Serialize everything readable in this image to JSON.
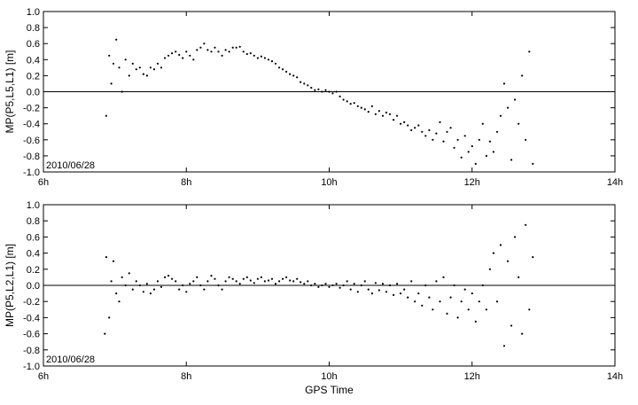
{
  "chart_data": [
    {
      "type": "scatter",
      "ylabel": "MP(P5,L5,L1) [m]",
      "xlabel": "",
      "annotation": "2010/06/28",
      "xlim": [
        6,
        14
      ],
      "ylim": [
        -1.0,
        1.0
      ],
      "xticks": [
        6,
        8,
        10,
        12,
        14
      ],
      "xtick_labels": [
        "6h",
        "8h",
        "10h",
        "12h",
        "14h"
      ],
      "yticks": [
        -1.0,
        -0.8,
        -0.6,
        -0.4,
        -0.2,
        0.0,
        0.2,
        0.4,
        0.6,
        0.8,
        1.0
      ],
      "ytick_labels": [
        "-1.0",
        "-0.8",
        "-0.6",
        "-0.4",
        "-0.2",
        "0.0",
        "0.2",
        "0.4",
        "0.6",
        "0.8",
        "1.0"
      ],
      "zero_line": true,
      "grid": false,
      "series": [
        {
          "x": [
            6.88,
            6.92,
            6.95,
            6.98,
            7.02,
            7.06,
            7.1,
            7.15,
            7.2,
            7.25,
            7.3,
            7.35,
            7.4,
            7.45,
            7.5,
            7.55,
            7.6,
            7.65,
            7.7,
            7.75,
            7.8,
            7.85,
            7.9,
            7.95,
            8.0,
            8.05,
            8.1,
            8.15,
            8.2,
            8.25,
            8.3,
            8.35,
            8.4,
            8.45,
            8.5,
            8.55,
            8.6,
            8.65,
            8.7,
            8.75,
            8.8,
            8.85,
            8.9,
            8.95,
            9.0,
            9.05,
            9.1,
            9.15,
            9.2,
            9.25,
            9.3,
            9.35,
            9.4,
            9.45,
            9.5,
            9.55,
            9.6,
            9.65,
            9.7,
            9.75,
            9.8,
            9.85,
            9.9,
            9.95,
            10.0,
            10.05,
            10.1,
            10.15,
            10.2,
            10.25,
            10.3,
            10.35,
            10.4,
            10.45,
            10.5,
            10.55,
            10.6,
            10.65,
            10.7,
            10.75,
            10.8,
            10.85,
            10.9,
            10.95,
            11.0,
            11.05,
            11.1,
            11.15,
            11.2,
            11.25,
            11.3,
            11.35,
            11.4,
            11.45,
            11.5,
            11.55,
            11.6,
            11.65,
            11.7,
            11.75,
            11.8,
            11.85,
            11.9,
            11.95,
            12.0,
            12.05,
            12.1,
            12.15,
            12.2,
            12.25,
            12.3,
            12.35,
            12.4,
            12.45,
            12.5,
            12.55,
            12.6,
            12.65,
            12.7,
            12.75,
            12.8,
            12.85
          ],
          "y": [
            -0.3,
            0.45,
            0.1,
            0.35,
            0.65,
            0.3,
            0.0,
            0.4,
            0.2,
            0.35,
            0.28,
            0.3,
            0.22,
            0.2,
            0.3,
            0.28,
            0.35,
            0.3,
            0.42,
            0.45,
            0.48,
            0.5,
            0.46,
            0.42,
            0.5,
            0.45,
            0.4,
            0.52,
            0.55,
            0.6,
            0.52,
            0.5,
            0.55,
            0.5,
            0.45,
            0.52,
            0.5,
            0.55,
            0.55,
            0.56,
            0.5,
            0.47,
            0.48,
            0.45,
            0.42,
            0.44,
            0.42,
            0.4,
            0.38,
            0.35,
            0.3,
            0.28,
            0.25,
            0.22,
            0.2,
            0.18,
            0.12,
            0.1,
            0.08,
            0.05,
            0.02,
            0.03,
            0.0,
            0.02,
            0.0,
            -0.02,
            0.0,
            -0.06,
            -0.1,
            -0.12,
            -0.15,
            -0.14,
            -0.18,
            -0.2,
            -0.22,
            -0.25,
            -0.18,
            -0.28,
            -0.24,
            -0.3,
            -0.26,
            -0.28,
            -0.35,
            -0.3,
            -0.4,
            -0.38,
            -0.42,
            -0.48,
            -0.45,
            -0.42,
            -0.5,
            -0.55,
            -0.48,
            -0.6,
            -0.52,
            -0.38,
            -0.62,
            -0.5,
            -0.45,
            -0.7,
            -0.6,
            -0.82,
            -0.55,
            -0.75,
            -0.68,
            -0.9,
            -0.6,
            -0.4,
            -0.8,
            -0.62,
            -0.75,
            -0.5,
            -0.3,
            0.1,
            -0.2,
            -0.85,
            -0.1,
            -0.4,
            0.2,
            -0.6,
            0.5,
            -0.9
          ],
          "marker": "dot",
          "color": "#000000"
        }
      ]
    },
    {
      "type": "scatter",
      "ylabel": "MP(P5,L2,L1) [m]",
      "xlabel": "GPS Time",
      "annotation": "2010/06/28",
      "xlim": [
        6,
        14
      ],
      "ylim": [
        -1.0,
        1.0
      ],
      "xticks": [
        6,
        8,
        10,
        12,
        14
      ],
      "xtick_labels": [
        "6h",
        "8h",
        "10h",
        "12h",
        "14h"
      ],
      "yticks": [
        -1.0,
        -0.8,
        -0.6,
        -0.4,
        -0.2,
        0.0,
        0.2,
        0.4,
        0.6,
        0.8,
        1.0
      ],
      "ytick_labels": [
        "-1.0",
        "-0.8",
        "-0.6",
        "-0.4",
        "-0.2",
        "0.0",
        "0.2",
        "0.4",
        "0.6",
        "0.8",
        "1.0"
      ],
      "zero_line": true,
      "grid": false,
      "series": [
        {
          "x": [
            6.86,
            6.88,
            6.92,
            6.95,
            6.98,
            7.02,
            7.06,
            7.1,
            7.15,
            7.2,
            7.25,
            7.3,
            7.35,
            7.4,
            7.45,
            7.5,
            7.55,
            7.6,
            7.65,
            7.7,
            7.75,
            7.8,
            7.85,
            7.9,
            7.95,
            8.0,
            8.05,
            8.1,
            8.15,
            8.2,
            8.25,
            8.3,
            8.35,
            8.4,
            8.45,
            8.5,
            8.55,
            8.6,
            8.65,
            8.7,
            8.75,
            8.8,
            8.85,
            8.9,
            8.95,
            9.0,
            9.05,
            9.1,
            9.15,
            9.2,
            9.25,
            9.3,
            9.35,
            9.4,
            9.45,
            9.5,
            9.55,
            9.6,
            9.65,
            9.7,
            9.75,
            9.8,
            9.85,
            9.9,
            9.95,
            10.0,
            10.05,
            10.1,
            10.15,
            10.2,
            10.25,
            10.3,
            10.35,
            10.4,
            10.45,
            10.5,
            10.55,
            10.6,
            10.65,
            10.7,
            10.75,
            10.8,
            10.85,
            10.9,
            10.95,
            11.0,
            11.05,
            11.1,
            11.15,
            11.2,
            11.25,
            11.3,
            11.35,
            11.4,
            11.45,
            11.5,
            11.55,
            11.6,
            11.65,
            11.7,
            11.75,
            11.8,
            11.85,
            11.9,
            11.95,
            12.0,
            12.05,
            12.1,
            12.15,
            12.2,
            12.25,
            12.3,
            12.35,
            12.4,
            12.45,
            12.5,
            12.55,
            12.6,
            12.65,
            12.7,
            12.75,
            12.8,
            12.85
          ],
          "y": [
            -0.6,
            0.35,
            -0.4,
            0.05,
            0.3,
            -0.1,
            -0.2,
            0.1,
            0.0,
            0.15,
            -0.05,
            0.05,
            0.0,
            -0.08,
            0.02,
            -0.1,
            -0.05,
            0.05,
            -0.02,
            0.1,
            0.12,
            0.08,
            0.05,
            -0.05,
            0.0,
            -0.08,
            0.02,
            0.05,
            0.1,
            0.0,
            -0.05,
            0.05,
            0.12,
            0.08,
            0.0,
            -0.05,
            0.05,
            0.1,
            0.08,
            0.05,
            0.02,
            0.08,
            0.1,
            0.06,
            0.03,
            0.08,
            0.1,
            0.05,
            0.06,
            0.08,
            0.02,
            0.05,
            0.08,
            0.1,
            0.06,
            0.05,
            0.08,
            0.04,
            0.02,
            0.05,
            0.0,
            0.02,
            -0.02,
            0.0,
            0.02,
            -0.02,
            0.0,
            0.02,
            -0.03,
            0.0,
            0.05,
            -0.05,
            0.02,
            -0.08,
            0.0,
            0.05,
            -0.05,
            -0.1,
            0.03,
            -0.06,
            0.02,
            -0.08,
            0.0,
            -0.12,
            0.02,
            -0.1,
            -0.05,
            -0.15,
            0.05,
            -0.2,
            -0.1,
            -0.25,
            0.0,
            -0.15,
            -0.3,
            0.05,
            -0.2,
            0.1,
            -0.35,
            -0.15,
            0.0,
            -0.4,
            -0.2,
            -0.05,
            -0.3,
            -0.1,
            -0.45,
            -0.2,
            0.0,
            -0.3,
            0.2,
            0.4,
            -0.2,
            0.5,
            -0.75,
            0.3,
            -0.5,
            0.6,
            0.1,
            -0.6,
            0.75,
            -0.3,
            0.35
          ],
          "marker": "dot",
          "color": "#000000"
        }
      ]
    }
  ]
}
